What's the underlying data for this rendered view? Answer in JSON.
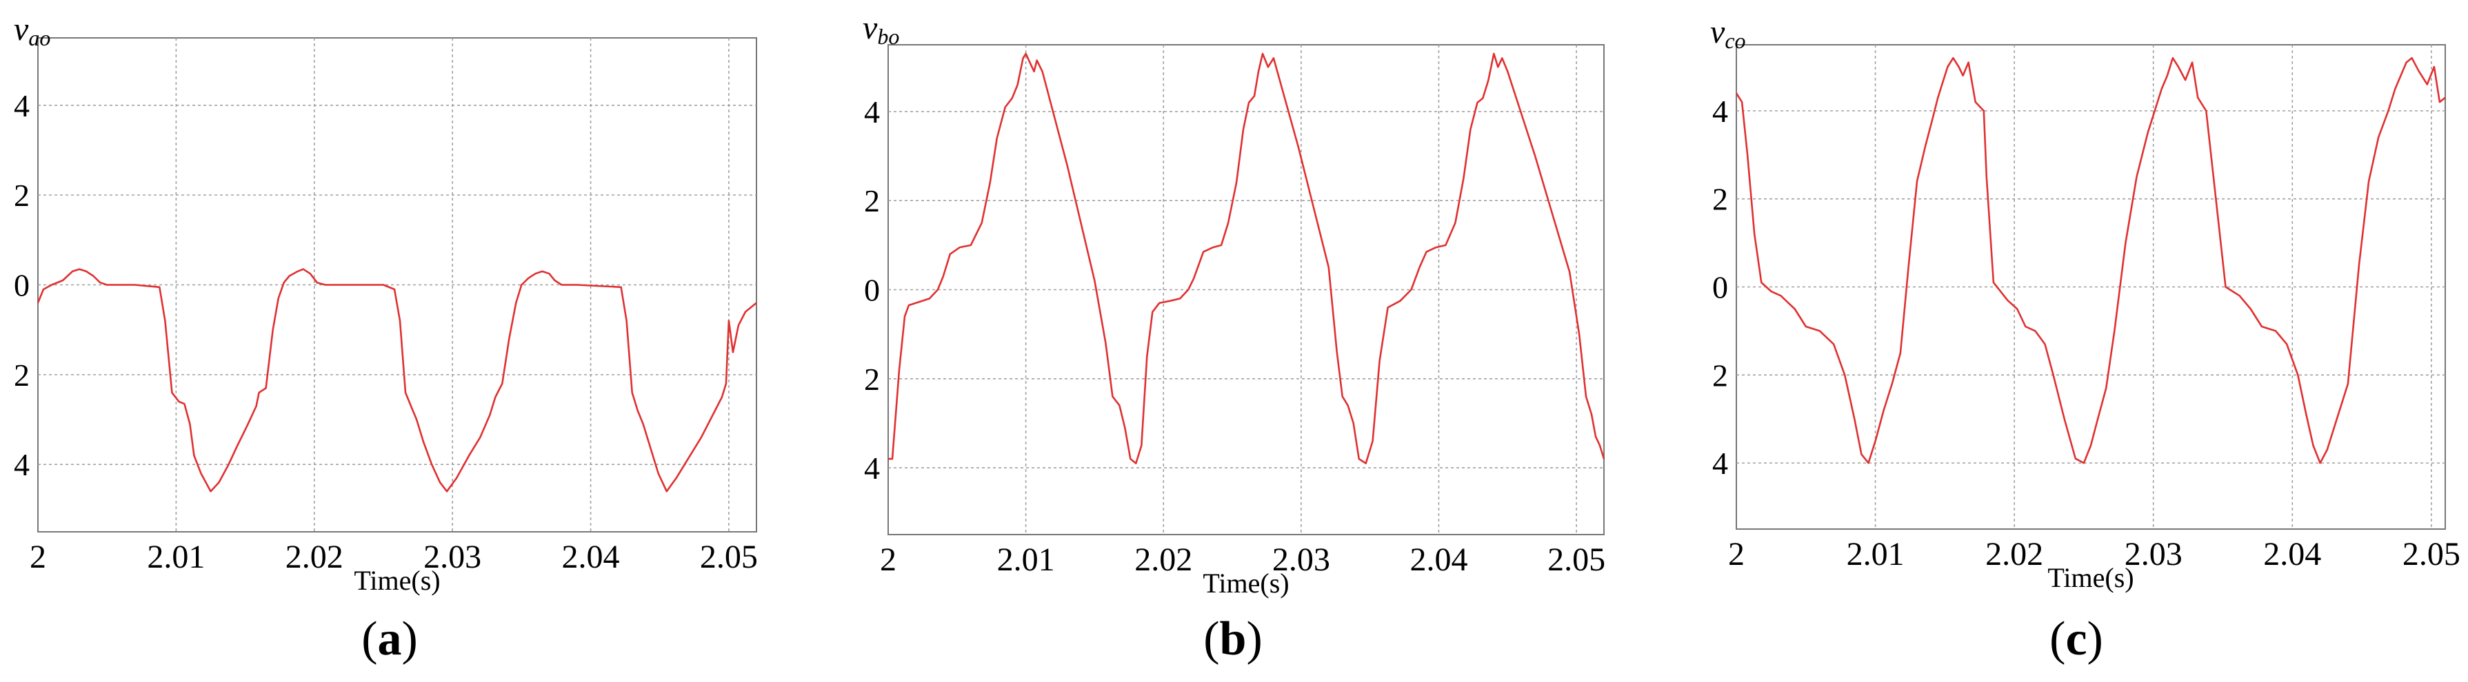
{
  "chart_data": [
    {
      "type": "line",
      "panel_label": "a",
      "ylabel": "v",
      "ylabel_sub": "ao",
      "xlabel": "Time(s)",
      "xlim": [
        2.0,
        2.052
      ],
      "ylim": [
        -5.5,
        5.5
      ],
      "xticks": [
        2.0,
        2.01,
        2.02,
        2.03,
        2.04,
        2.05
      ],
      "xtick_labels": [
        "2",
        "2.01",
        "2.02",
        "2.03",
        "2.04",
        "2.05"
      ],
      "yticks": [
        4,
        2,
        0,
        -2,
        -4
      ],
      "ytick_labels": [
        "4",
        "2",
        "0",
        "2",
        "4"
      ],
      "grid": true,
      "color": "#e03030",
      "series": [
        {
          "x": [
            2.0,
            2.0004,
            2.001,
            2.0018,
            2.0025,
            2.003,
            2.0035,
            2.004,
            2.0045,
            2.005,
            2.007,
            2.0088,
            2.0092,
            2.0097,
            2.0102,
            2.0106,
            2.011,
            2.0113,
            2.0118,
            2.0125,
            2.0131,
            2.0138,
            2.0144,
            2.0152,
            2.0158,
            2.016,
            2.0165,
            2.017,
            2.0174,
            2.0178,
            2.0182,
            2.0188,
            2.0192,
            2.0197,
            2.0202,
            2.0208,
            2.0212,
            2.0217,
            2.023,
            2.025,
            2.0258,
            2.0262,
            2.0266,
            2.027,
            2.0274,
            2.0279,
            2.0285,
            2.0291,
            2.0296,
            2.0303,
            2.0312,
            2.032,
            2.0327,
            2.0331,
            2.0336,
            2.0341,
            2.0346,
            2.035,
            2.0355,
            2.036,
            2.0365,
            2.037,
            2.0374,
            2.0379,
            2.039,
            2.0422,
            2.0426,
            2.043,
            2.0434,
            2.0438,
            2.0443,
            2.0449,
            2.0455,
            2.0462,
            2.047,
            2.048,
            2.049,
            2.0495,
            2.0498,
            2.05,
            2.0503,
            2.0507,
            2.0512,
            2.052
          ],
          "y": [
            -0.4,
            -0.1,
            0.0,
            0.1,
            0.3,
            0.35,
            0.3,
            0.2,
            0.05,
            0.0,
            0.0,
            -0.05,
            -0.8,
            -2.4,
            -2.6,
            -2.65,
            -3.1,
            -3.8,
            -4.2,
            -4.6,
            -4.4,
            -4.0,
            -3.6,
            -3.1,
            -2.7,
            -2.4,
            -2.3,
            -1.0,
            -0.3,
            0.05,
            0.2,
            0.3,
            0.35,
            0.25,
            0.05,
            0.0,
            0.0,
            0.0,
            0.0,
            0.0,
            -0.1,
            -0.8,
            -2.4,
            -2.7,
            -3.0,
            -3.5,
            -4.0,
            -4.4,
            -4.6,
            -4.3,
            -3.8,
            -3.4,
            -2.9,
            -2.5,
            -2.2,
            -1.2,
            -0.4,
            0.0,
            0.15,
            0.25,
            0.3,
            0.25,
            0.1,
            0.0,
            0.0,
            -0.05,
            -0.8,
            -2.4,
            -2.8,
            -3.1,
            -3.6,
            -4.2,
            -4.6,
            -4.3,
            -3.9,
            -3.4,
            -2.8,
            -2.5,
            -2.2,
            -0.8,
            -1.5,
            -0.9,
            -0.6,
            -0.4
          ]
        }
      ]
    },
    {
      "type": "line",
      "panel_label": "b",
      "ylabel": "v",
      "ylabel_sub": "bo",
      "xlabel": "Time(s)",
      "xlim": [
        2.0,
        2.052
      ],
      "ylim": [
        -5.5,
        5.5
      ],
      "xticks": [
        2.0,
        2.01,
        2.02,
        2.03,
        2.04,
        2.05
      ],
      "xtick_labels": [
        "2",
        "2.01",
        "2.02",
        "2.03",
        "2.04",
        "2.05"
      ],
      "yticks": [
        4,
        2,
        0,
        -2,
        -4
      ],
      "ytick_labels": [
        "4",
        "2",
        "0",
        "2",
        "4"
      ],
      "grid": true,
      "color": "#e03030",
      "series": [
        {
          "x": [
            2.0,
            2.0003,
            2.0008,
            2.0012,
            2.0015,
            2.002,
            2.003,
            2.0036,
            2.004,
            2.0045,
            2.0052,
            2.006,
            2.0068,
            2.0074,
            2.0079,
            2.0085,
            2.009,
            2.0094,
            2.0098,
            2.01,
            2.0103,
            2.0106,
            2.0108,
            2.0112,
            2.013,
            2.015,
            2.0158,
            2.0163,
            2.0168,
            2.0172,
            2.0176,
            2.018,
            2.0184,
            2.0188,
            2.0192,
            2.0197,
            2.0205,
            2.0212,
            2.0218,
            2.0222,
            2.0229,
            2.0236,
            2.0242,
            2.0247,
            2.0253,
            2.0258,
            2.0262,
            2.0266,
            2.0269,
            2.0272,
            2.0276,
            2.028,
            2.0298,
            2.032,
            2.0326,
            2.033,
            2.0334,
            2.0338,
            2.0342,
            2.0347,
            2.0352,
            2.0357,
            2.0363,
            2.0372,
            2.038,
            2.0386,
            2.0391,
            2.0398,
            2.0405,
            2.0412,
            2.0418,
            2.0423,
            2.0428,
            2.0432,
            2.0436,
            2.044,
            2.0443,
            2.0446,
            2.045,
            2.047,
            2.0495,
            2.0502,
            2.0507,
            2.0511,
            2.0514,
            2.0517,
            2.052
          ],
          "y": [
            -3.8,
            -3.8,
            -1.8,
            -0.6,
            -0.35,
            -0.3,
            -0.2,
            0.0,
            0.3,
            0.8,
            0.95,
            1.0,
            1.5,
            2.4,
            3.4,
            4.1,
            4.3,
            4.6,
            5.2,
            5.3,
            5.1,
            4.9,
            5.15,
            4.9,
            2.8,
            0.2,
            -1.2,
            -2.4,
            -2.6,
            -3.1,
            -3.8,
            -3.9,
            -3.5,
            -1.5,
            -0.5,
            -0.3,
            -0.25,
            -0.2,
            0.0,
            0.25,
            0.85,
            0.95,
            1.0,
            1.5,
            2.4,
            3.6,
            4.2,
            4.35,
            4.9,
            5.3,
            5.0,
            5.2,
            3.2,
            0.5,
            -1.4,
            -2.4,
            -2.6,
            -3.0,
            -3.8,
            -3.9,
            -3.4,
            -1.6,
            -0.4,
            -0.25,
            0.0,
            0.5,
            0.85,
            0.95,
            1.0,
            1.5,
            2.5,
            3.6,
            4.2,
            4.3,
            4.7,
            5.3,
            5.0,
            5.2,
            4.9,
            3.0,
            0.4,
            -1.0,
            -2.4,
            -2.8,
            -3.3,
            -3.5,
            -3.8
          ]
        }
      ]
    },
    {
      "type": "line",
      "panel_label": "c",
      "ylabel": "v",
      "ylabel_sub": "co",
      "xlabel": "Time(s)",
      "xlim": [
        2.0,
        2.051
      ],
      "ylim": [
        -5.5,
        5.5
      ],
      "xticks": [
        2.0,
        2.01,
        2.02,
        2.03,
        2.04,
        2.05
      ],
      "xtick_labels": [
        "2",
        "2.01",
        "2.02",
        "2.03",
        "2.04",
        "2.05"
      ],
      "yticks": [
        4,
        2,
        0,
        -2,
        -4
      ],
      "ytick_labels": [
        "4",
        "2",
        "0",
        "2",
        "4"
      ],
      "grid": true,
      "color": "#e03030",
      "series": [
        {
          "x": [
            2.0,
            2.0004,
            2.0008,
            2.0013,
            2.0018,
            2.0025,
            2.0032,
            2.0037,
            2.0042,
            2.005,
            2.006,
            2.007,
            2.0078,
            2.0085,
            2.009,
            2.0095,
            2.01,
            2.0106,
            2.0112,
            2.0118,
            2.0124,
            2.013,
            2.0136,
            2.0141,
            2.0145,
            2.0148,
            2.0152,
            2.0156,
            2.016,
            2.0163,
            2.0167,
            2.0172,
            2.0178,
            2.018,
            2.0185,
            2.0195,
            2.0202,
            2.0208,
            2.0215,
            2.0222,
            2.0228,
            2.0236,
            2.0244,
            2.025,
            2.0255,
            2.026,
            2.0266,
            2.0272,
            2.028,
            2.0288,
            2.0296,
            2.0302,
            2.0306,
            2.031,
            2.0314,
            2.0318,
            2.0323,
            2.0328,
            2.0332,
            2.0338,
            2.0345,
            2.0352,
            2.0362,
            2.037,
            2.0378,
            2.0388,
            2.0396,
            2.0404,
            2.041,
            2.0415,
            2.042,
            2.0425,
            2.0432,
            2.044,
            2.0448,
            2.0455,
            2.0462,
            2.0469,
            2.0474,
            2.0478,
            2.0482,
            2.0486,
            2.0491,
            2.0497,
            2.0502,
            2.0506,
            2.051
          ],
          "y": [
            4.4,
            4.2,
            3.0,
            1.2,
            0.1,
            -0.1,
            -0.2,
            -0.35,
            -0.5,
            -0.9,
            -1.0,
            -1.3,
            -2.0,
            -3.0,
            -3.8,
            -4.0,
            -3.5,
            -2.8,
            -2.2,
            -1.5,
            0.5,
            2.4,
            3.2,
            3.8,
            4.3,
            4.6,
            5.0,
            5.2,
            5.0,
            4.8,
            5.1,
            4.2,
            4.0,
            2.5,
            0.1,
            -0.3,
            -0.5,
            -0.9,
            -1.0,
            -1.3,
            -2.0,
            -3.0,
            -3.9,
            -4.0,
            -3.6,
            -3.0,
            -2.3,
            -1.0,
            1.0,
            2.5,
            3.5,
            4.1,
            4.5,
            4.8,
            5.2,
            5.0,
            4.7,
            5.1,
            4.3,
            4.0,
            2.0,
            0.0,
            -0.2,
            -0.5,
            -0.9,
            -1.0,
            -1.3,
            -2.0,
            -2.9,
            -3.6,
            -4.0,
            -3.7,
            -3.0,
            -2.2,
            0.5,
            2.4,
            3.4,
            4.0,
            4.5,
            4.8,
            5.1,
            5.2,
            4.9,
            4.6,
            5.0,
            4.2,
            4.3
          ]
        }
      ]
    }
  ]
}
